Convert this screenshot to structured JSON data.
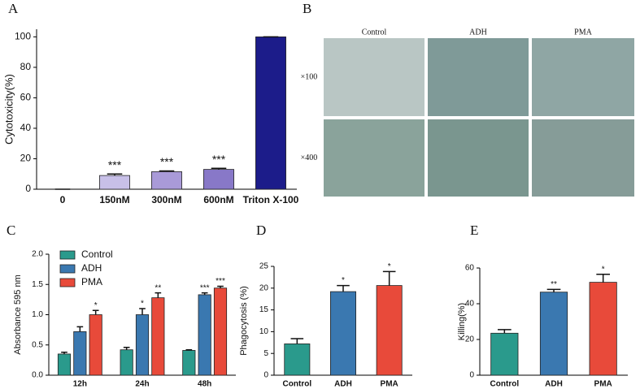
{
  "chart_data": [
    {
      "type": "bar",
      "label": "A",
      "ylabel": "Cytotoxicity(%)",
      "categories": [
        "0",
        "150nM",
        "300nM",
        "600nM",
        "Triton X-100"
      ],
      "series": [
        {
          "colors": [
            "#c8c0e8",
            "#c8c0e8",
            "#a99ad8",
            "#8878c8",
            "#1c1c8a"
          ],
          "values": [
            0,
            9,
            11.5,
            13,
            100
          ],
          "errors": [
            0,
            1,
            0.5,
            0.7,
            0
          ],
          "annotations": [
            null,
            "***",
            "***",
            "***",
            null
          ]
        }
      ],
      "ylim": [
        0,
        105
      ],
      "yticks": [
        0,
        20,
        40,
        60,
        80,
        100
      ]
    },
    {
      "type": "bar",
      "label": "C",
      "ylabel": "Absorbance 595 nm",
      "categories": [
        "12h",
        "24h",
        "48h"
      ],
      "series": [
        {
          "name": "Control",
          "color": "#2a9a8c",
          "values": [
            0.35,
            0.42,
            0.41
          ],
          "errors": [
            0.03,
            0.04,
            0.01
          ],
          "annotations": [
            null,
            null,
            null
          ]
        },
        {
          "name": "ADH",
          "color": "#3a78b0",
          "values": [
            0.72,
            1.0,
            1.33
          ],
          "errors": [
            0.08,
            0.1,
            0.03
          ],
          "annotations": [
            null,
            "*",
            "***"
          ]
        },
        {
          "name": "PMA",
          "color": "#e84a3a",
          "values": [
            1.0,
            1.28,
            1.44
          ],
          "errors": [
            0.07,
            0.08,
            0.03
          ],
          "annotations": [
            "*",
            "**",
            "***"
          ]
        }
      ],
      "ylim": [
        0,
        2
      ],
      "yticks": [
        {
          "value": 0,
          "label": "0.0"
        },
        0.5,
        {
          "value": 1,
          "label": "1.0"
        },
        1.5,
        {
          "value": 2,
          "label": "2.0"
        }
      ]
    },
    {
      "type": "bar",
      "label": "D",
      "ylabel": "Phagocytosis (%)",
      "categories": [
        "Control",
        "ADH",
        "PMA"
      ],
      "series": [
        {
          "colors": [
            "#2a9a8c",
            "#3a78b0",
            "#e84a3a"
          ],
          "values": [
            7.2,
            19.2,
            20.6
          ],
          "errors": [
            1.2,
            1.4,
            3.2
          ],
          "annotations": [
            null,
            "*",
            "*"
          ]
        }
      ],
      "ylim": [
        0,
        25
      ],
      "yticks": [
        0,
        5,
        10,
        15,
        20,
        25
      ]
    },
    {
      "type": "bar",
      "label": "E",
      "ylabel": "Killing(%)",
      "categories": [
        "Control",
        "ADH",
        "PMA"
      ],
      "series": [
        {
          "colors": [
            "#2a9a8c",
            "#3a78b0",
            "#e84a3a"
          ],
          "values": [
            23.5,
            46.5,
            52
          ],
          "errors": [
            2,
            1.5,
            4.5
          ],
          "annotations": [
            null,
            "**",
            "*"
          ]
        }
      ],
      "ylim": [
        0,
        60
      ],
      "yticks": [
        0,
        20,
        40,
        60
      ]
    }
  ],
  "micrographs": {
    "label": "B",
    "columns": [
      "Control",
      "ADH",
      "PMA"
    ],
    "rows": [
      "×100",
      "×400"
    ]
  }
}
